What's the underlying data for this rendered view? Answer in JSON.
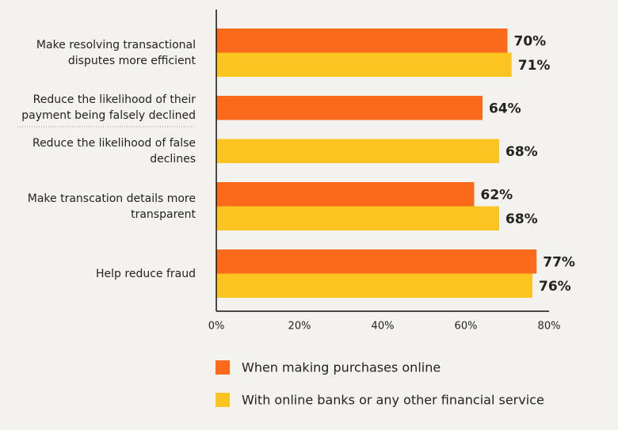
{
  "chart_data": {
    "type": "hbar",
    "categories": [
      "Make resolving transactional disputes more efficient",
      "Reduce the likelihood of their payment being falsely declined",
      "Reduce the likelihood of false declines",
      "Make transcation details more transparent",
      "Help reduce fraud"
    ],
    "series": [
      {
        "name": "When making purchases online",
        "color": "#fb6a1a",
        "values": [
          70,
          64,
          null,
          62,
          77
        ],
        "value_labels": [
          "70%",
          "64%",
          null,
          "62%",
          "77%"
        ]
      },
      {
        "name": "With online banks or any other financial service",
        "color": "#fcc421",
        "values": [
          71,
          null,
          68,
          68,
          76
        ],
        "value_labels": [
          "71%",
          null,
          "68%",
          "68%",
          "76%"
        ]
      }
    ],
    "xlim": [
      0,
      80
    ],
    "xticks": [
      {
        "value": 0,
        "label": "0%"
      },
      {
        "value": 20,
        "label": "20%"
      },
      {
        "value": 40,
        "label": "40%"
      },
      {
        "value": 60,
        "label": "60%"
      },
      {
        "value": 80,
        "label": "80%"
      }
    ]
  }
}
